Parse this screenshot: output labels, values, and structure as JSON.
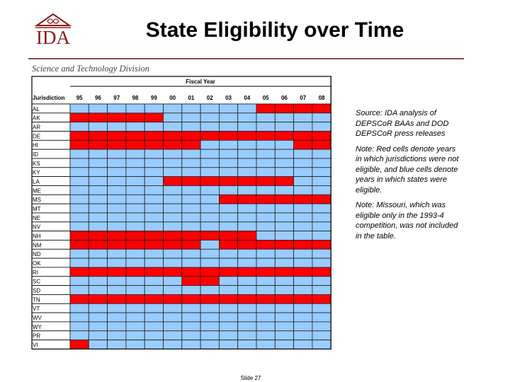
{
  "header": {
    "logo": "IDA",
    "title": "State Eligibility over Time",
    "division": "Science and Technology Division"
  },
  "table": {
    "group_header": "Fiscal Year",
    "first_column_header": "Jurisdiction",
    "columns": [
      "95",
      "96",
      "97",
      "98",
      "99",
      "00",
      "01",
      "02",
      "03",
      "04",
      "05",
      "06",
      "07",
      "08"
    ],
    "colors": {
      "eligible": "#99ccff",
      "not_eligible": "#ff0000"
    },
    "rows": [
      {
        "jurisdiction": "AL",
        "eligible": [
          true,
          true,
          true,
          true,
          true,
          true,
          true,
          true,
          true,
          true,
          false,
          false,
          false,
          false
        ]
      },
      {
        "jurisdiction": "AK",
        "eligible": [
          false,
          false,
          false,
          false,
          false,
          true,
          true,
          true,
          true,
          true,
          true,
          true,
          true,
          true
        ]
      },
      {
        "jurisdiction": "AR",
        "eligible": [
          true,
          true,
          true,
          true,
          true,
          true,
          true,
          true,
          true,
          true,
          true,
          true,
          true,
          true
        ]
      },
      {
        "jurisdiction": "DE",
        "eligible": [
          false,
          false,
          false,
          false,
          false,
          false,
          false,
          false,
          false,
          false,
          false,
          false,
          false,
          false
        ]
      },
      {
        "jurisdiction": "HI",
        "eligible": [
          false,
          false,
          false,
          false,
          false,
          false,
          false,
          true,
          true,
          true,
          true,
          true,
          false,
          false
        ]
      },
      {
        "jurisdiction": "ID",
        "eligible": [
          true,
          true,
          true,
          true,
          true,
          true,
          true,
          true,
          true,
          true,
          true,
          true,
          true,
          true
        ]
      },
      {
        "jurisdiction": "KS",
        "eligible": [
          true,
          true,
          true,
          true,
          true,
          true,
          true,
          true,
          true,
          true,
          true,
          true,
          true,
          true
        ]
      },
      {
        "jurisdiction": "KY",
        "eligible": [
          true,
          true,
          true,
          true,
          true,
          true,
          true,
          true,
          true,
          true,
          true,
          true,
          true,
          true
        ]
      },
      {
        "jurisdiction": "LA",
        "eligible": [
          true,
          true,
          true,
          true,
          true,
          false,
          false,
          false,
          false,
          false,
          false,
          false,
          true,
          true
        ]
      },
      {
        "jurisdiction": "ME",
        "eligible": [
          true,
          true,
          true,
          true,
          true,
          true,
          true,
          true,
          true,
          true,
          true,
          true,
          true,
          true
        ]
      },
      {
        "jurisdiction": "MS",
        "eligible": [
          true,
          true,
          true,
          true,
          true,
          true,
          true,
          true,
          false,
          false,
          false,
          false,
          false,
          false
        ]
      },
      {
        "jurisdiction": "MT",
        "eligible": [
          true,
          true,
          true,
          true,
          true,
          true,
          true,
          true,
          true,
          true,
          true,
          true,
          true,
          true
        ]
      },
      {
        "jurisdiction": "NE",
        "eligible": [
          true,
          true,
          true,
          true,
          true,
          true,
          true,
          true,
          true,
          true,
          true,
          true,
          true,
          true
        ]
      },
      {
        "jurisdiction": "NV",
        "eligible": [
          true,
          true,
          true,
          true,
          true,
          true,
          true,
          true,
          true,
          true,
          true,
          true,
          true,
          true
        ]
      },
      {
        "jurisdiction": "NH",
        "eligible": [
          false,
          false,
          false,
          false,
          false,
          false,
          false,
          false,
          false,
          false,
          true,
          true,
          true,
          true
        ]
      },
      {
        "jurisdiction": "NM",
        "eligible": [
          false,
          false,
          false,
          false,
          false,
          false,
          false,
          true,
          false,
          false,
          false,
          false,
          false,
          false
        ]
      },
      {
        "jurisdiction": "ND",
        "eligible": [
          true,
          true,
          true,
          true,
          true,
          true,
          true,
          true,
          true,
          true,
          true,
          true,
          true,
          true
        ]
      },
      {
        "jurisdiction": "OK",
        "eligible": [
          true,
          true,
          true,
          true,
          true,
          true,
          true,
          true,
          true,
          true,
          true,
          true,
          true,
          true
        ]
      },
      {
        "jurisdiction": "RI",
        "eligible": [
          false,
          false,
          false,
          false,
          false,
          false,
          false,
          false,
          false,
          false,
          false,
          false,
          false,
          false
        ]
      },
      {
        "jurisdiction": "SC",
        "eligible": [
          true,
          true,
          true,
          true,
          true,
          true,
          false,
          false,
          true,
          true,
          true,
          true,
          true,
          true
        ]
      },
      {
        "jurisdiction": "SD",
        "eligible": [
          true,
          true,
          true,
          true,
          true,
          true,
          true,
          true,
          true,
          true,
          true,
          true,
          true,
          true
        ]
      },
      {
        "jurisdiction": "TN",
        "eligible": [
          false,
          false,
          false,
          false,
          false,
          false,
          false,
          false,
          false,
          false,
          false,
          false,
          false,
          false
        ]
      },
      {
        "jurisdiction": "VT",
        "eligible": [
          true,
          true,
          true,
          true,
          true,
          true,
          true,
          true,
          true,
          true,
          true,
          true,
          true,
          true
        ]
      },
      {
        "jurisdiction": "WV",
        "eligible": [
          true,
          true,
          true,
          true,
          true,
          true,
          true,
          true,
          true,
          true,
          true,
          true,
          true,
          true
        ]
      },
      {
        "jurisdiction": "WY",
        "eligible": [
          true,
          true,
          true,
          true,
          true,
          true,
          true,
          true,
          true,
          true,
          true,
          true,
          true,
          true
        ]
      },
      {
        "jurisdiction": "PR",
        "eligible": [
          true,
          true,
          true,
          true,
          true,
          true,
          true,
          true,
          true,
          true,
          true,
          true,
          true,
          true
        ]
      },
      {
        "jurisdiction": "VI",
        "eligible": [
          false,
          true,
          true,
          true,
          true,
          true,
          true,
          true,
          true,
          true,
          true,
          true,
          true,
          true
        ]
      }
    ]
  },
  "notes": [
    "Source: IDA analysis of DEPSCoR BAAs and DOD DEPSCoR press releases",
    "Note: Red cells denote years in which jurisdictions were not eligible, and blue cells denote years in which states were eligible.",
    "Note: Missouri, which was eligible only in the 1993-4 competition, was not included in the table."
  ],
  "footer": {
    "slide": "Slide 27"
  }
}
